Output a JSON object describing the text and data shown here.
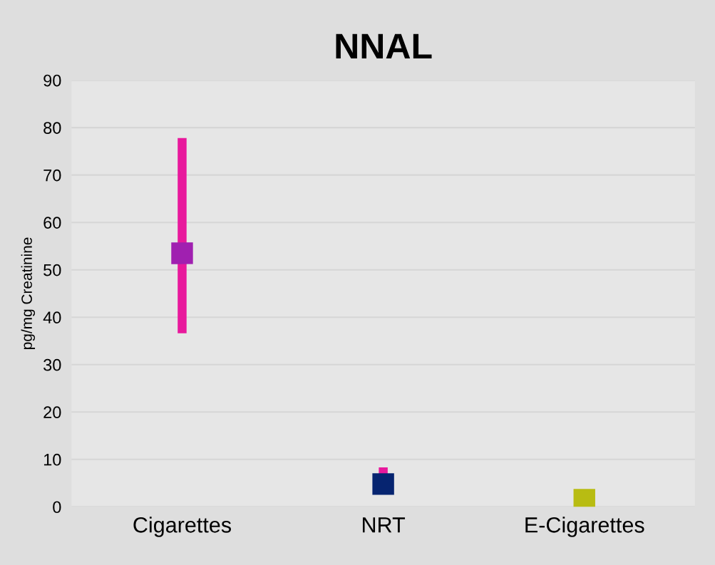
{
  "chart_data": {
    "type": "scatter",
    "title": "NNAL",
    "ylabel": "pg/mg Creatinine",
    "categories": [
      "Cigarettes",
      "NRT",
      "E-Cigarettes"
    ],
    "values": [
      53.5,
      4.8,
      1.5
    ],
    "colors": [
      "#a020b0",
      "#062470",
      "#b8bc12"
    ],
    "errors": [
      [
        36.6,
        77.8
      ],
      [
        4.8,
        8.3
      ],
      null
    ],
    "ylim": [
      0,
      90
    ],
    "yticks": [
      0,
      10,
      20,
      30,
      40,
      50,
      60,
      70,
      80,
      90
    ],
    "grid": "y",
    "marker": "square",
    "legend": false
  }
}
